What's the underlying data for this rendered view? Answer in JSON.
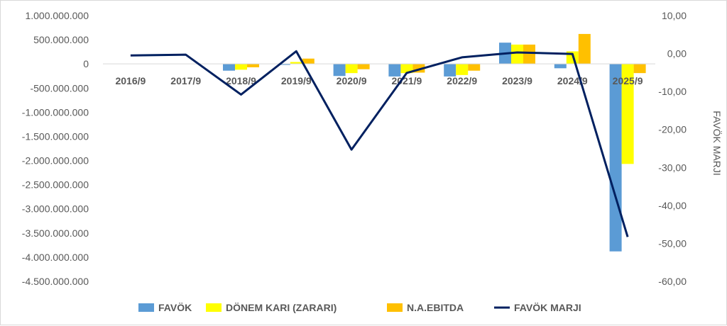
{
  "chart_data": {
    "type": "bar",
    "categories": [
      "2016/9",
      "2017/9",
      "2018/9",
      "2019/9",
      "2020/9",
      "2021/9",
      "2022/9",
      "2023/9",
      "2024/9",
      "2025/9"
    ],
    "series": [
      {
        "name": "FAVÖK",
        "type": "bar",
        "axis": "left",
        "color": "#5B9BD5",
        "values": [
          0,
          0,
          -140000000,
          -20000000,
          -250000000,
          -260000000,
          -260000000,
          440000000,
          -90000000,
          -3880000000
        ]
      },
      {
        "name": "DÖNEM KARI (ZARARI)",
        "type": "bar",
        "axis": "left",
        "color": "#FFFF00",
        "values": [
          0,
          0,
          -120000000,
          40000000,
          -190000000,
          -190000000,
          -230000000,
          400000000,
          260000000,
          -2070000000
        ]
      },
      {
        "name": "N.A.EBITDA",
        "type": "bar",
        "axis": "left",
        "color": "#FFC000",
        "values": [
          0,
          0,
          -70000000,
          110000000,
          -110000000,
          -180000000,
          -140000000,
          400000000,
          620000000,
          -190000000
        ]
      },
      {
        "name": "FAVÖK MARJI",
        "type": "line",
        "axis": "right",
        "color": "#002060",
        "values": [
          -0.5,
          -0.3,
          -10.8,
          0.6,
          -25.3,
          -5.1,
          -1.0,
          0.3,
          -0.1,
          -48.3
        ]
      }
    ],
    "left_axis": {
      "ylim": [
        -4500000000,
        1000000000
      ],
      "tick_labels": [
        "1.000.000.000",
        "500.000.000",
        "0",
        "-500.000.000",
        "-1.000.000.000",
        "-1.500.000.000",
        "-2.000.000.000",
        "-2.500.000.000",
        "-3.000.000.000",
        "-3.500.000.000",
        "-4.000.000.000",
        "-4.500.000.000"
      ]
    },
    "right_axis": {
      "label": "FAVÖK MARJI",
      "ylim": [
        -60,
        10
      ],
      "tick_labels": [
        "10,00",
        "0,00",
        "-10,00",
        "-20,00",
        "-30,00",
        "-40,00",
        "-50,00",
        "-60,00"
      ]
    },
    "legend": {
      "position": "bottom",
      "entries": [
        "FAVÖK",
        "DÖNEM KARI (ZARARI)",
        "N.A.EBITDA",
        "FAVÖK MARJI"
      ]
    },
    "grid": false
  }
}
